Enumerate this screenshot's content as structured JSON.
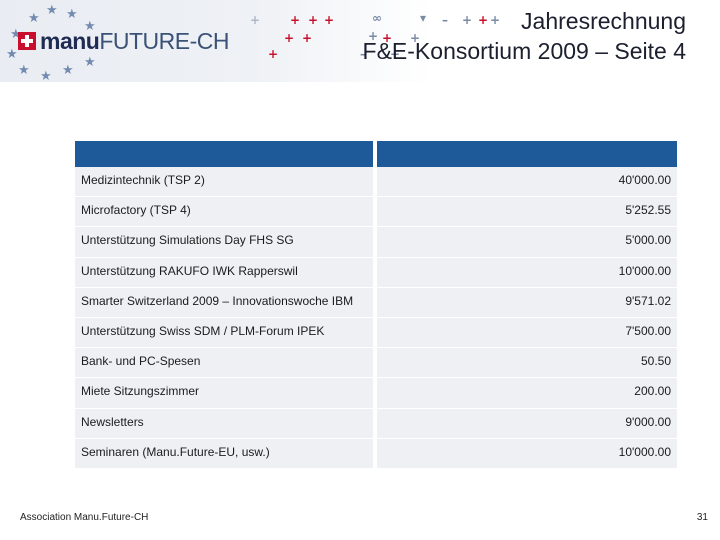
{
  "header": {
    "logo_a": "manu",
    "logo_b": "FUTURE-CH",
    "title_line1": "Jahresrechnung",
    "title_line2": "F&E-Konsortium 2009 – Seite 4"
  },
  "table": {
    "header": [
      "",
      ""
    ],
    "rows": [
      {
        "name": "Medizintechnik (TSP 2)",
        "amount": "40'000.00"
      },
      {
        "name": "Microfactory (TSP 4)",
        "amount": "5'252.55"
      },
      {
        "name": "Unterstützung Simulations Day FHS SG",
        "amount": "5'000.00"
      },
      {
        "name": "Unterstützung RAKUFO IWK Rapperswil",
        "amount": "10'000.00"
      },
      {
        "name": "Smarter Switzerland 2009 – Innovationswoche IBM",
        "amount": "9'571.02"
      },
      {
        "name": "Unterstützung Swiss SDM / PLM-Forum IPEK",
        "amount": "7'500.00"
      },
      {
        "name": "Bank- und PC-Spesen",
        "amount": "50.50"
      },
      {
        "name": "Miete Sitzungszimmer",
        "amount": "200.00"
      },
      {
        "name": "Newsletters",
        "amount": "9'000.00"
      },
      {
        "name": "Seminaren (Manu.Future-EU, usw.)",
        "amount": "10'000.00"
      }
    ]
  },
  "footer": {
    "association": "Association Manu.Future-CH",
    "page_number": "31"
  },
  "colors": {
    "header_band": "#1e5a9a",
    "cell_bg": "#eef0f4",
    "logo_red": "#c8102e",
    "logo_navy": "#1f2b52"
  }
}
